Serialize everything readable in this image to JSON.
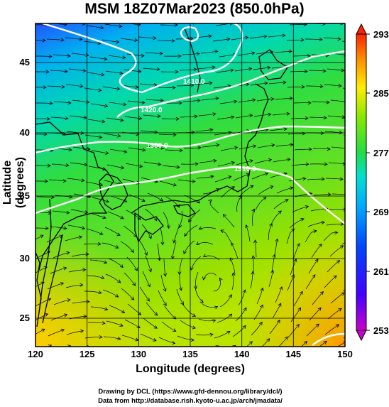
{
  "title": "MSM 18Z07Mar2023 (850.0hPa)",
  "x_axis": {
    "label": "Longitude (degrees)",
    "ticks": [
      "120",
      "125",
      "130",
      "135",
      "140",
      "145",
      "150"
    ]
  },
  "y_axis": {
    "label": "Latitude  (degrees)",
    "ticks": [
      "25",
      "30",
      "35",
      "40",
      "45"
    ]
  },
  "colorbar": {
    "ticks": [
      "253",
      "261",
      "269",
      "277",
      "285",
      "293"
    ],
    "colors": [
      "#cc00cc",
      "#2222ff",
      "#00aaff",
      "#00e0d0",
      "#22dd44",
      "#aaee00",
      "#ffee00",
      "#ff8800",
      "#ff2200"
    ]
  },
  "contour_labels": [
    "1410.0",
    "1420.0",
    "1380.0",
    "1510.0"
  ],
  "footer": {
    "line1": "Drawing by DCL (https://www.gfd-dennou.org/library/dcl/)",
    "line2": "Data from http://database.rish.kyoto-u.ac.jp/arch/jmadata/"
  }
}
